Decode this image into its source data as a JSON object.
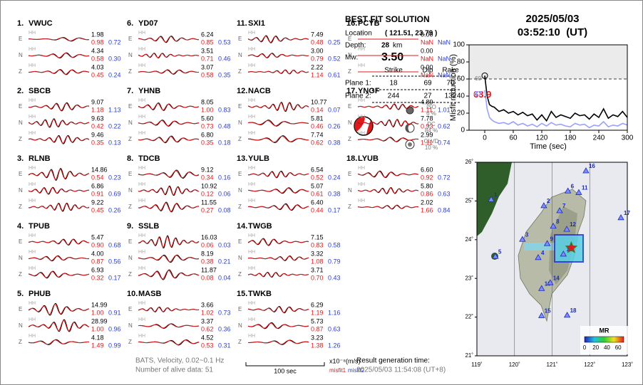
{
  "header": {
    "date": "2025/05/03",
    "time": "03:52:10  (UT)"
  },
  "components": [
    "E",
    "N",
    "Z"
  ],
  "channel": "HH",
  "stations": [
    {
      "num": "1.",
      "name": "VWUC",
      "traces": [
        {
          "amp": "1.98",
          "misfit1": "0.98",
          "misfit2": "0.72"
        },
        {
          "amp": "4.34",
          "misfit1": "0.58",
          "misfit2": "0.30"
        },
        {
          "amp": "4.03",
          "misfit1": "0.45",
          "misfit2": "0.24"
        }
      ]
    },
    {
      "num": "2.",
      "name": "SBCB",
      "traces": [
        {
          "amp": "9.07",
          "misfit1": "1.18",
          "misfit2": "1.13"
        },
        {
          "amp": "9.63",
          "misfit1": "0.42",
          "misfit2": "0.22"
        },
        {
          "amp": "9.46",
          "misfit1": "0.35",
          "misfit2": "0.13"
        }
      ]
    },
    {
      "num": "3.",
      "name": "RLNB",
      "traces": [
        {
          "amp": "14.86",
          "misfit1": "0.54",
          "misfit2": "0.23"
        },
        {
          "amp": "6.86",
          "misfit1": "0.91",
          "misfit2": "0.69"
        },
        {
          "amp": "9.22",
          "misfit1": "0.45",
          "misfit2": "0.26"
        }
      ]
    },
    {
      "num": "4.",
      "name": "TPUB",
      "traces": [
        {
          "amp": "5.47",
          "misfit1": "0.90",
          "misfit2": "0.68"
        },
        {
          "amp": "4.00",
          "misfit1": "0.87",
          "misfit2": "0.56"
        },
        {
          "amp": "6.93",
          "misfit1": "0.32",
          "misfit2": "0.17"
        }
      ]
    },
    {
      "num": "5.",
      "name": "PHUB",
      "traces": [
        {
          "amp": "14.99",
          "misfit1": "1.00",
          "misfit2": "0.91"
        },
        {
          "amp": "28.99",
          "misfit1": "1.00",
          "misfit2": "0.96"
        },
        {
          "amp": "4.18",
          "misfit1": "1.49",
          "misfit2": "0.99"
        }
      ]
    },
    {
      "num": "6.",
      "name": "YD07",
      "traces": [
        {
          "amp": "6.24",
          "misfit1": "0.85",
          "misfit2": "0.53"
        },
        {
          "amp": "3.51",
          "misfit1": "0.71",
          "misfit2": "0.46"
        },
        {
          "amp": "3.07",
          "misfit1": "0.58",
          "misfit2": "0.35"
        }
      ]
    },
    {
      "num": "7.",
      "name": "YHNB",
      "traces": [
        {
          "amp": "8.05",
          "misfit1": "1.00",
          "misfit2": "0.83"
        },
        {
          "amp": "5.60",
          "misfit1": "0.73",
          "misfit2": "0.48"
        },
        {
          "amp": "6.80",
          "misfit1": "0.35",
          "misfit2": "0.18"
        }
      ]
    },
    {
      "num": "8.",
      "name": "TDCB",
      "traces": [
        {
          "amp": "9.12",
          "misfit1": "0.34",
          "misfit2": "0.16"
        },
        {
          "amp": "10.92",
          "misfit1": "0.12",
          "misfit2": "0.06"
        },
        {
          "amp": "11.55",
          "misfit1": "0.27",
          "misfit2": "0.08"
        }
      ]
    },
    {
      "num": "9.",
      "name": "SSLB",
      "traces": [
        {
          "amp": "16.03",
          "misfit1": "0.06",
          "misfit2": "0.03"
        },
        {
          "amp": "8.19",
          "misfit1": "0.38",
          "misfit2": "0.21"
        },
        {
          "amp": "11.87",
          "misfit1": "0.08",
          "misfit2": "0.04"
        }
      ]
    },
    {
      "num": "10.",
      "name": "MASB",
      "traces": [
        {
          "amp": "3.66",
          "misfit1": "1.02",
          "misfit2": "0.73"
        },
        {
          "amp": "3.37",
          "misfit1": "0.62",
          "misfit2": "0.36"
        },
        {
          "amp": "4.52",
          "misfit1": "0.53",
          "misfit2": "0.31"
        }
      ]
    },
    {
      "num": "11.",
      "name": "SXI1",
      "traces": [
        {
          "amp": "7.49",
          "misfit1": "0.48",
          "misfit2": "0.25"
        },
        {
          "amp": "3.00",
          "misfit1": "0.79",
          "misfit2": "0.52"
        },
        {
          "amp": "2.22",
          "misfit1": "1.14",
          "misfit2": "0.61"
        }
      ]
    },
    {
      "num": "12.",
      "name": "NACB",
      "traces": [
        {
          "amp": "10.77",
          "misfit1": "0.14",
          "misfit2": "0.07"
        },
        {
          "amp": "5.81",
          "misfit1": "0.46",
          "misfit2": "0.26"
        },
        {
          "amp": "7.74",
          "misfit1": "0.62",
          "misfit2": "0.38"
        }
      ]
    },
    {
      "num": "13.",
      "name": "YULB",
      "traces": [
        {
          "amp": "6.54",
          "misfit1": "0.52",
          "misfit2": "0.24"
        },
        {
          "amp": "5.07",
          "misfit1": "0.61",
          "misfit2": "0.38"
        },
        {
          "amp": "6.40",
          "misfit1": "0.44",
          "misfit2": "0.17"
        }
      ]
    },
    {
      "num": "14.",
      "name": "TWGB",
      "traces": [
        {
          "amp": "7.15",
          "misfit1": "0.83",
          "misfit2": "0.58"
        },
        {
          "amp": "3.32",
          "misfit1": "1.08",
          "misfit2": "0.79"
        },
        {
          "amp": "3.71",
          "misfit1": "0.70",
          "misfit2": "0.43"
        }
      ]
    },
    {
      "num": "15.",
      "name": "TWKB",
      "traces": [
        {
          "amp": "6.29",
          "misfit1": "1.19",
          "misfit2": "1.16"
        },
        {
          "amp": "5.73",
          "misfit1": "0.87",
          "misfit2": "0.63"
        },
        {
          "amp": "3.23",
          "misfit1": "1.38",
          "misfit2": "1.26"
        }
      ]
    },
    {
      "num": "16.",
      "name": "PCYB",
      "traces": [
        {
          "amp": "0.00",
          "misfit1": "NaN",
          "misfit2": "NaN"
        },
        {
          "amp": "0.00",
          "misfit1": "NaN",
          "misfit2": "NaN"
        },
        {
          "amp": "0.00",
          "misfit1": "NaN",
          "misfit2": "NaN"
        }
      ]
    },
    {
      "num": "17.",
      "name": "YNGF",
      "traces": [
        {
          "amp": "4.89",
          "misfit1": "1.11",
          "misfit2": "1.01"
        },
        {
          "amp": "7.78",
          "misfit1": "0.93",
          "misfit2": "0.62"
        },
        {
          "amp": "2.99",
          "misfit1": "1.11",
          "misfit2": "0.74"
        }
      ]
    },
    {
      "num": "18.",
      "name": "LYUB",
      "traces": [
        {
          "amp": "6.60",
          "misfit1": "0.92",
          "misfit2": "0.72"
        },
        {
          "amp": "5.80",
          "misfit1": "0.86",
          "misfit2": "0.63"
        },
        {
          "amp": "2.02",
          "misfit1": "1.66",
          "misfit2": "0.84"
        }
      ]
    }
  ],
  "solution": {
    "title": "BEST FIT SOLUTION",
    "location_label": "Location",
    "location": "( 121.51, 23.79 )",
    "depth_label": "Depth:",
    "depth": "28",
    "depth_unit": "km",
    "mw_label": "Mw:",
    "mw": "3.50",
    "columns": [
      "Strike",
      "Dip",
      "Rake"
    ],
    "planes": [
      {
        "label": "Plane 1:",
        "values": [
          18,
          69,
          70
        ]
      },
      {
        "label": "Plane 2:",
        "values": [
          244,
          27,
          132
        ]
      }
    ],
    "components": [
      {
        "label": "ISO",
        "value": "6 %"
      },
      {
        "label": "DC",
        "value": "84 %"
      },
      {
        "label": "CLVD",
        "value": "10 %"
      }
    ]
  },
  "chart_data": {
    "type": "line",
    "xlabel": "Time (sec)",
    "ylabel": "Misfit reduction (%)",
    "x": [
      0,
      5,
      10,
      15,
      20,
      30,
      40,
      50,
      60,
      70,
      80,
      90,
      100,
      110,
      120,
      130,
      140,
      150,
      160,
      170,
      180,
      190,
      200,
      210,
      220,
      230,
      240,
      250,
      260,
      270,
      280,
      290,
      300
    ],
    "series": [
      {
        "color": "#000000",
        "values": [
          63.9,
          40,
          30,
          28,
          27,
          22,
          24,
          20,
          22,
          18,
          21,
          17,
          19,
          12,
          18,
          11,
          22,
          15,
          18,
          16,
          14,
          20,
          17,
          18,
          13,
          19,
          15,
          25,
          14,
          18,
          16,
          22,
          15
        ]
      },
      {
        "color": "#9aa0ff",
        "values": [
          47,
          25,
          15,
          12,
          10,
          8,
          9,
          7,
          10,
          6,
          8,
          5,
          7,
          4,
          8,
          5,
          9,
          6,
          7,
          5,
          4,
          8,
          6,
          7,
          3,
          6,
          5,
          10,
          4,
          6,
          5,
          8,
          6
        ]
      }
    ],
    "xlim": [
      -33,
      300
    ],
    "ylim": [
      0,
      100
    ],
    "xticks": [
      0,
      60,
      120,
      180,
      240,
      300
    ],
    "yticks": [
      0,
      20,
      40,
      60,
      80,
      100
    ],
    "threshold": 60
  },
  "map": {
    "xlim": [
      119,
      123
    ],
    "ylim": [
      21,
      26
    ],
    "xticks": [
      {
        "value": 119,
        "label": "119˚"
      },
      {
        "value": 120,
        "label": "120˚"
      },
      {
        "value": 121,
        "label": "121˚"
      },
      {
        "value": 122,
        "label": "122˚"
      },
      {
        "value": 123,
        "label": "123˚"
      }
    ],
    "yticks": [
      {
        "value": 21,
        "label": "21˚"
      },
      {
        "value": 22,
        "label": "22˚"
      },
      {
        "value": 23,
        "label": "23˚"
      },
      {
        "value": 24,
        "label": "24˚"
      },
      {
        "value": 25,
        "label": "25˚"
      },
      {
        "value": 26,
        "label": "26˚"
      }
    ],
    "epicenter": [
      121.51,
      23.79
    ],
    "stations": [
      {
        "label": "1",
        "lon": 119.38,
        "lat": 25.04
      },
      {
        "label": "2",
        "lon": 120.78,
        "lat": 24.88
      },
      {
        "label": "3",
        "lon": 120.21,
        "lat": 24.01
      },
      {
        "label": "4",
        "lon": 120.63,
        "lat": 23.54
      },
      {
        "label": "5",
        "lon": 119.49,
        "lat": 23.57
      },
      {
        "label": "6",
        "lon": 121.42,
        "lat": 25.26
      },
      {
        "label": "7",
        "lon": 121.2,
        "lat": 24.75
      },
      {
        "label": "8",
        "lon": 121.03,
        "lat": 24.35
      },
      {
        "label": "9",
        "lon": 120.87,
        "lat": 23.9
      },
      {
        "label": "10",
        "lon": 120.72,
        "lat": 22.74
      },
      {
        "label": "11",
        "lon": 121.71,
        "lat": 25.22
      },
      {
        "label": "12",
        "lon": 121.39,
        "lat": 24.27
      },
      {
        "label": "13",
        "lon": 121.3,
        "lat": 23.63
      },
      {
        "label": "14",
        "lon": 120.95,
        "lat": 22.89
      },
      {
        "label": "15",
        "lon": 120.72,
        "lat": 22.04
      },
      {
        "label": "16",
        "lon": 121.9,
        "lat": 25.78
      },
      {
        "label": "17",
        "lon": 122.83,
        "lat": 24.57
      },
      {
        "label": "18",
        "lon": 121.4,
        "lat": 22.05
      }
    ],
    "colorbar": {
      "label": "MR",
      "lim": [
        0,
        70
      ],
      "ticks": [
        0,
        20,
        40,
        60
      ]
    }
  },
  "footer": {
    "filter": "BATS, Velocity, 0.02~0.1 Hz",
    "alive": "Number of alive data: 51",
    "scale": "100 sec",
    "unit": "x10⁻⁸(m/s)",
    "misfit1": "misfit1",
    "misfit2": "misfit2",
    "result_label": "Result generation time:",
    "result_time": "2025/05/03 11:54:08 (UT+8)"
  }
}
